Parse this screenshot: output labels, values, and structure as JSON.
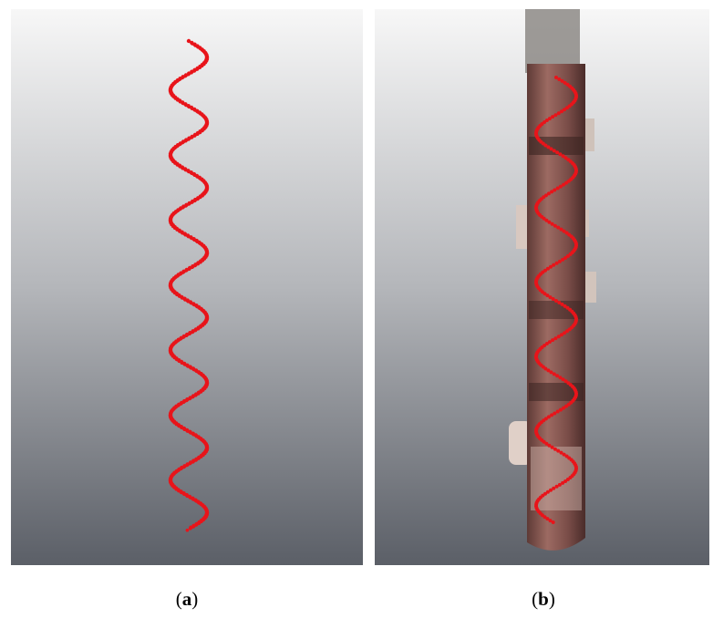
{
  "panels": [
    {
      "open": "(",
      "letter": "a",
      "close": ")"
    },
    {
      "open": "(",
      "letter": "b",
      "close": ")"
    }
  ]
}
